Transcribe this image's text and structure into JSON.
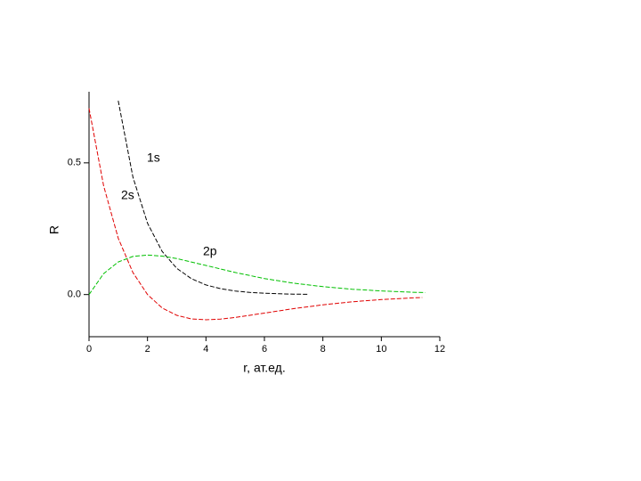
{
  "chart_data": {
    "type": "line",
    "x_label": "r, ат.ед.",
    "y_label": "R",
    "xlim": [
      0,
      12
    ],
    "ylim": [
      -0.16,
      0.77
    ],
    "xticks": [
      0,
      2,
      4,
      6,
      8,
      10,
      12
    ],
    "yticks": [
      {
        "value": 0,
        "label": "0.0"
      },
      0.5
    ],
    "series": [
      {
        "name": "1s",
        "color": "#000000",
        "x": [
          1,
          1.5,
          2,
          2.5,
          3,
          3.5,
          4,
          4.5,
          5,
          5.5,
          6,
          6.5,
          7,
          7.5
        ],
        "values": [
          0.736,
          0.446,
          0.271,
          0.164,
          0.0996,
          0.0604,
          0.0366,
          0.0222,
          0.0135,
          0.0082,
          0.005,
          0.003,
          0.0018,
          0.0011
        ]
      },
      {
        "name": "2s",
        "color": "#e00000",
        "x": [
          0,
          0.5,
          1,
          1.5,
          2,
          2.5,
          3,
          3.5,
          4,
          4.5,
          5,
          6,
          7,
          8,
          9,
          10,
          11,
          11.4
        ],
        "values": [
          0.707,
          0.413,
          0.214,
          0.0835,
          0,
          -0.0507,
          -0.0789,
          -0.0922,
          -0.0957,
          -0.0932,
          -0.0871,
          -0.0704,
          -0.0534,
          -0.0389,
          -0.0275,
          -0.0191,
          -0.013,
          -0.0111
        ]
      },
      {
        "name": "2p",
        "color": "#00c000",
        "x": [
          0,
          0.5,
          1,
          1.5,
          2,
          2.5,
          3,
          4,
          5,
          6,
          7,
          8,
          9,
          10,
          11,
          11.5
        ],
        "values": [
          0,
          0.0795,
          0.1238,
          0.1446,
          0.1502,
          0.1462,
          0.1366,
          0.1105,
          0.0838,
          0.061,
          0.0432,
          0.0299,
          0.0204,
          0.0138,
          0.0092,
          0.0074
        ]
      }
    ]
  }
}
